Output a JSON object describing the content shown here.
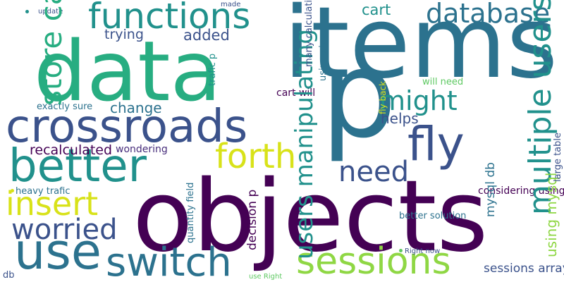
{
  "colors": {
    "background": "#ffffff",
    "dark_purple": "#440154",
    "indigo": "#3b528b",
    "teal_blue": "#2c728e",
    "teal": "#21918c",
    "green_teal": "#27ad81",
    "green": "#5ec962",
    "light_green": "#8fd744",
    "yellow": "#d8e219",
    "purple": "#472d7b"
  },
  "words": [
    {
      "id": "data",
      "text": "data"
    },
    {
      "id": "items",
      "text": "items"
    },
    {
      "id": "p",
      "text": "p"
    },
    {
      "id": "objects",
      "text": "objects"
    },
    {
      "id": "crossroads",
      "text": "crossroads"
    },
    {
      "id": "better",
      "text": "better"
    },
    {
      "id": "functions",
      "text": "functions"
    },
    {
      "id": "database",
      "text": "database"
    },
    {
      "id": "sessions",
      "text": "sessions"
    },
    {
      "id": "switch",
      "text": "switch"
    },
    {
      "id": "use",
      "text": "use"
    },
    {
      "id": "insert",
      "text": "insert"
    },
    {
      "id": "worried",
      "text": "worried"
    },
    {
      "id": "forth",
      "text": "forth"
    },
    {
      "id": "fly",
      "text": "fly"
    },
    {
      "id": "need",
      "text": "need"
    },
    {
      "id": "might",
      "text": "might"
    },
    {
      "id": "cart",
      "text": "cart"
    },
    {
      "id": "trying",
      "text": "trying"
    },
    {
      "id": "added",
      "text": "added"
    },
    {
      "id": "change",
      "text": "change"
    },
    {
      "id": "helps",
      "text": "helps"
    },
    {
      "id": "exactly_sure",
      "text": "exactly sure"
    },
    {
      "id": "recalculated",
      "text": "recalculated"
    },
    {
      "id": "wondering",
      "text": "wondering"
    },
    {
      "id": "heavy_trafic",
      "text": "heavy trafic"
    },
    {
      "id": "db",
      "text": "db"
    },
    {
      "id": "sessions_arrays",
      "text": "sessions arrays"
    },
    {
      "id": "considering_using",
      "text": "considering using"
    },
    {
      "id": "better_solution",
      "text": "better solution"
    },
    {
      "id": "right_now",
      "text": "Right now"
    },
    {
      "id": "use_right",
      "text": "use Right"
    },
    {
      "id": "update",
      "text": "update"
    },
    {
      "id": "made",
      "text": "made"
    },
    {
      "id": "will_need",
      "text": "will need"
    },
    {
      "id": "cart_will",
      "text": "cart will"
    },
    {
      "id": "store_calculations",
      "text": "store calculations"
    },
    {
      "id": "multiple_users",
      "text": "multiple users"
    },
    {
      "id": "users_manipulating",
      "text": "users manipulating"
    },
    {
      "id": "decision_p",
      "text": "decision p"
    },
    {
      "id": "using_mysql",
      "text": "using mysql"
    },
    {
      "id": "mysql_db",
      "text": "mysql db"
    },
    {
      "id": "large_table",
      "text": "large table"
    },
    {
      "id": "quantity_field",
      "text": "quantity field"
    },
    {
      "id": "many_calculations",
      "text": "many calculations"
    },
    {
      "id": "using_ajax",
      "text": "using ajax"
    },
    {
      "id": "fly_back",
      "text": "fly back"
    },
    {
      "id": "trafic_p",
      "text": "trafic p"
    }
  ]
}
